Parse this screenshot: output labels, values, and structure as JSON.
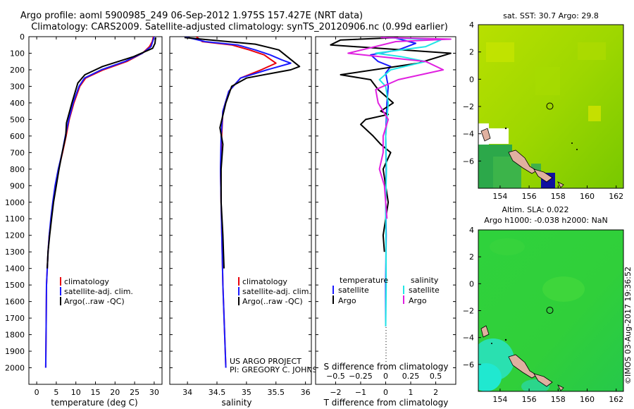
{
  "header": {
    "line1": "Argo profile: aoml 5900985_249 06-Sep-2012 1.975S 157.427E (NRT data)",
    "line2": "Climatology: CARS2009. Satellite-adjusted climatology: synTS_20120906.nc (0.99d earlier)"
  },
  "colors": {
    "climatology": "#e8000b",
    "satellite": "#1a1aff",
    "argo": "#000000",
    "satellite_salinity": "#22e6e6",
    "argo_salinity": "#e020e0"
  },
  "project_note": {
    "line1": "US ARGO PROJECT",
    "line2": "PI: GREGORY C. JOHNSON"
  },
  "chart_data": [
    {
      "type": "line",
      "title": "",
      "xlabel": "temperature (deg C)",
      "ylabel": "",
      "xlim": [
        -2,
        32
      ],
      "ylim": [
        2100,
        0
      ],
      "xticks": [
        0,
        5,
        10,
        15,
        20,
        25,
        30
      ],
      "xtick_labels": [
        "0",
        "5",
        "10",
        "15",
        "20",
        "25",
        "30"
      ],
      "yticks": [
        0,
        100,
        200,
        300,
        400,
        500,
        600,
        700,
        800,
        900,
        1000,
        1100,
        1200,
        1300,
        1400,
        1500,
        1600,
        1700,
        1800,
        1900,
        2000
      ],
      "ytick_labels": [
        "0",
        "100",
        "200",
        "300",
        "400",
        "500",
        "600",
        "700",
        "800",
        "900",
        "1000",
        "1100",
        "1200",
        "1300",
        "1400",
        "1500",
        "1600",
        "1700",
        "1800",
        "1900",
        "2000"
      ],
      "legend": [
        "climatology",
        "satellite-adj. clim.",
        "Argo(..raw -QC)"
      ],
      "legend_colors": [
        "#e8000b",
        "#1a1aff",
        "#000000"
      ],
      "series": [
        {
          "name": "climatology",
          "color": "#e8000b",
          "x": [
            29.8,
            29.5,
            28.8,
            27,
            23,
            17,
            12.5,
            11,
            9.5,
            8.3,
            7.5,
            6.6,
            5.6,
            4.8,
            4.2,
            3.7,
            3.2,
            2.9,
            2.7,
            2.5,
            2.4,
            2.3
          ],
          "y": [
            0,
            30,
            60,
            100,
            150,
            200,
            250,
            300,
            400,
            500,
            600,
            700,
            800,
            900,
            1000,
            1100,
            1200,
            1300,
            1400,
            1500,
            1750,
            2000
          ]
        },
        {
          "name": "satellite-adj. clim.",
          "color": "#1a1aff",
          "x": [
            30,
            29.6,
            29.2,
            27,
            22.5,
            16.5,
            12.2,
            10.8,
            9.3,
            8.2,
            7.3,
            6.5,
            5.5,
            4.7,
            4.1,
            3.6,
            3.2,
            2.9,
            2.7,
            2.5,
            2.4,
            2.3
          ],
          "y": [
            0,
            30,
            60,
            100,
            150,
            200,
            250,
            300,
            400,
            500,
            600,
            700,
            800,
            900,
            1000,
            1100,
            1200,
            1300,
            1400,
            1500,
            1750,
            2000
          ]
        },
        {
          "name": "Argo(..raw -QC)",
          "color": "#000000",
          "x": [
            30.4,
            30.3,
            30.2,
            29.6,
            24.8,
            16.8,
            12.3,
            10.5,
            9,
            7.6,
            7.4,
            6.5,
            5.7,
            5,
            4.3,
            3.8,
            3.3,
            2.9,
            2.7
          ],
          "y": [
            5,
            20,
            40,
            70,
            120,
            180,
            230,
            280,
            400,
            520,
            600,
            700,
            800,
            900,
            1000,
            1100,
            1200,
            1300,
            1400
          ]
        }
      ]
    },
    {
      "type": "line",
      "title": "",
      "xlabel": "salinity",
      "ylabel": "",
      "xlim": [
        33.7,
        36.1
      ],
      "ylim": [
        2100,
        0
      ],
      "xticks": [
        34,
        34.5,
        35,
        35.5,
        36
      ],
      "xtick_labels": [
        "34",
        "34.5",
        "35",
        "35.5",
        "36"
      ],
      "legend": [
        "climatology",
        "satellite-adj. clim.",
        "Argo(..raw -QC)"
      ],
      "legend_colors": [
        "#e8000b",
        "#1a1aff",
        "#000000"
      ],
      "series": [
        {
          "name": "climatology",
          "color": "#e8000b",
          "x": [
            34.15,
            34.25,
            34.75,
            35.05,
            35.3,
            35.5,
            35.25,
            34.9,
            34.7,
            34.6,
            34.58,
            34.56,
            34.57,
            34.6,
            34.65
          ],
          "y": [
            0,
            30,
            50,
            80,
            110,
            160,
            200,
            250,
            330,
            450,
            600,
            800,
            1000,
            1500,
            2000
          ]
        },
        {
          "name": "satellite-adj. clim.",
          "color": "#1a1aff",
          "x": [
            33.95,
            34.3,
            34.85,
            35.15,
            35.4,
            35.6,
            35.75,
            35.35,
            34.9,
            34.7,
            34.6,
            34.57,
            34.56,
            34.57,
            34.6,
            34.65
          ],
          "y": [
            0,
            30,
            50,
            80,
            110,
            140,
            160,
            200,
            250,
            330,
            450,
            600,
            800,
            1000,
            1500,
            2000
          ]
        },
        {
          "name": "Argo(..raw -QC)",
          "color": "#000000",
          "x": [
            33.95,
            34.4,
            35.15,
            35.55,
            35.9,
            35.75,
            35.45,
            35.0,
            34.75,
            34.65,
            34.55,
            34.6,
            34.57,
            34.57,
            34.6,
            34.62
          ],
          "y": [
            5,
            20,
            45,
            80,
            180,
            200,
            220,
            250,
            300,
            400,
            550,
            650,
            800,
            1000,
            1200,
            1400
          ]
        }
      ]
    },
    {
      "type": "line",
      "title": "",
      "xlabel": "T difference from climatology",
      "xlabel_top": "S difference from climatology",
      "xlim": [
        -2.8,
        2.8
      ],
      "ylim": [
        2100,
        0
      ],
      "xticks": [
        -2,
        -1,
        0,
        1,
        2
      ],
      "xtick_labels": [
        "−2",
        "−1",
        "0",
        "1",
        "2"
      ],
      "xticks_salinity": [
        -0.5,
        -0.25,
        0,
        0.25,
        0.5
      ],
      "xtick_labels_salinity": [
        "−0.5",
        "−0.25",
        "0",
        "0.25",
        "0.5"
      ],
      "legend_headers": [
        "temperature",
        "salinity"
      ],
      "legend": [
        "satellite",
        "Argo",
        "satellite",
        "Argo"
      ],
      "legend_colors": [
        "#1a1aff",
        "#000000",
        "#22e6e6",
        "#e020e0"
      ],
      "series": [
        {
          "name": "T satellite",
          "color": "#1a1aff",
          "x": [
            0.3,
            1.2,
            0.5,
            -0.6,
            -0.3,
            0.2,
            0,
            0.1,
            0.05,
            0,
            0.02,
            0,
            0.02,
            0,
            0
          ],
          "y": [
            5,
            40,
            80,
            110,
            150,
            180,
            220,
            300,
            400,
            600,
            800,
            1000,
            1200,
            1500,
            1750
          ]
        },
        {
          "name": "T Argo",
          "color": "#000000",
          "x": [
            0.5,
            -1.8,
            -2.2,
            2.6,
            1.3,
            -1.8,
            -0.6,
            -0.3,
            0.3,
            -0.2,
            0.1,
            -0.8,
            -1.0,
            -0.5,
            -0.2,
            0.2,
            -0.1,
            0,
            0.1,
            -0.1,
            -0.05
          ],
          "y": [
            5,
            20,
            50,
            100,
            160,
            230,
            260,
            320,
            400,
            450,
            470,
            500,
            530,
            600,
            650,
            700,
            800,
            900,
            1000,
            1200,
            1300
          ]
        },
        {
          "name": "S satellite",
          "color": "#22e6e6",
          "x": [
            -0.1,
            2.2,
            1.6,
            -0.4,
            0.6,
            1.6,
            0.2,
            -0.25,
            0,
            0.1,
            0,
            0.03,
            0,
            0.02,
            0
          ],
          "y": [
            5,
            20,
            60,
            100,
            120,
            150,
            200,
            260,
            300,
            400,
            600,
            800,
            1000,
            1500,
            1750
          ]
        },
        {
          "name": "S Argo",
          "color": "#e020e0",
          "x": [
            -0.2,
            2.6,
            0.4,
            -1.5,
            1.6,
            2.3,
            0.5,
            -0.4,
            -0.3,
            0.1,
            -0.1,
            -0.1,
            -0.25,
            -0.05,
            0,
            0.05
          ],
          "y": [
            5,
            15,
            30,
            100,
            150,
            200,
            260,
            320,
            400,
            500,
            600,
            700,
            800,
            900,
            1000,
            1100
          ]
        }
      ]
    },
    {
      "type": "heatmap",
      "title": "sat. SST: 30.7 Argo: 29.8",
      "xlim": [
        152.5,
        162.5
      ],
      "ylim": [
        -8,
        4
      ],
      "xticks": [
        154,
        156,
        158,
        160,
        162
      ],
      "xtick_labels": [
        "154",
        "156",
        "158",
        "160",
        "162"
      ],
      "yticks": [
        4,
        2,
        0,
        -2,
        -4,
        -6
      ],
      "ytick_labels": [
        "4",
        "2",
        "0",
        "−2",
        "−4",
        "−6"
      ],
      "marker": {
        "lon": 157.427,
        "lat": -1.975
      },
      "value_sat_sst": 30.7,
      "value_argo": 29.8
    },
    {
      "type": "heatmap",
      "title_line1": "Altim. SLA: 0.022",
      "title_line2": "Argo h1000: -0.038 h2000: NaN",
      "xlim": [
        152.5,
        162.5
      ],
      "ylim": [
        -8,
        4
      ],
      "xticks": [
        154,
        156,
        158,
        160,
        162
      ],
      "xtick_labels": [
        "154",
        "156",
        "158",
        "160",
        "162"
      ],
      "yticks": [
        4,
        2,
        0,
        -2,
        -4,
        -6
      ],
      "ytick_labels": [
        "4",
        "2",
        "0",
        "−2",
        "−4",
        "−6"
      ],
      "marker": {
        "lon": 157.427,
        "lat": -1.975
      }
    }
  ],
  "credit": "©IMOS 03-Aug-2017 19:36:52"
}
